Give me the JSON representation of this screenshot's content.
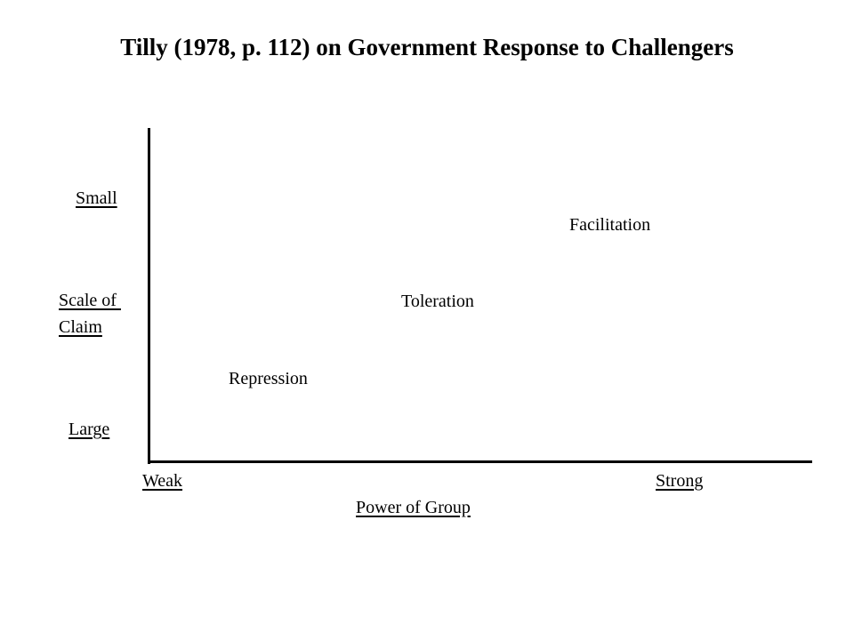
{
  "title": "Tilly (1978, p. 112) on Government Response to Challengers",
  "y_axis": {
    "top_label": "Small",
    "label_line1": "Scale of ",
    "label_line2": "Claim",
    "bottom_label": "Large"
  },
  "x_axis": {
    "left_label": "Weak",
    "right_label": "Strong",
    "label": "Power of Group"
  },
  "responses": {
    "facilitation": "Facilitation",
    "toleration": "Toleration",
    "repression": "Repression"
  }
}
